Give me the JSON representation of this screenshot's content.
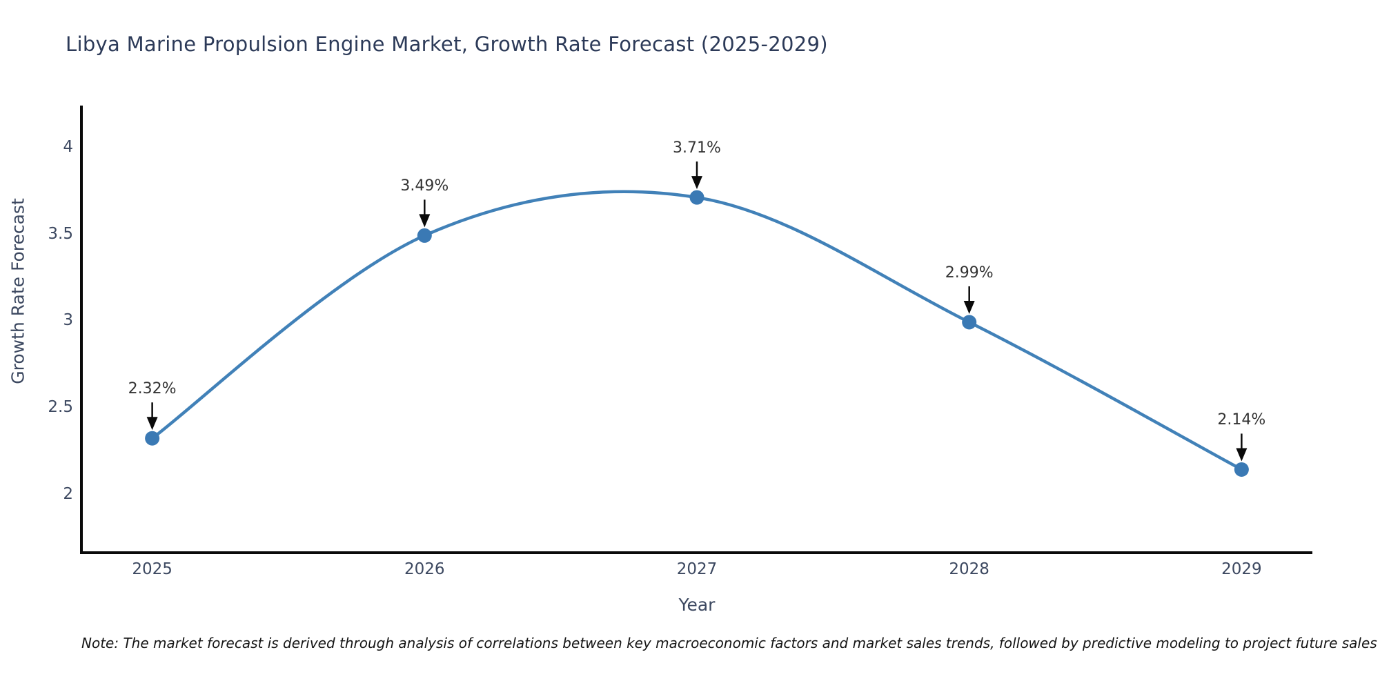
{
  "title": "Libya Marine Propulsion Engine Market, Growth Rate Forecast (2025-2029)",
  "note": "Note: The market forecast is derived through analysis of correlations between key macroeconomic factors and market sales trends, followed by predictive modeling to project future sales",
  "chart_data": {
    "type": "line",
    "title": "Libya Marine Propulsion Engine Market, Growth Rate Forecast (2025-2029)",
    "x": [
      2025,
      2026,
      2027,
      2028,
      2029
    ],
    "series": [
      {
        "name": "Growth Rate Forecast",
        "values": [
          2.32,
          3.49,
          3.71,
          2.99,
          2.14
        ]
      }
    ],
    "point_labels": [
      "2.32%",
      "3.49%",
      "3.71%",
      "2.99%",
      "2.14%"
    ],
    "xlabel": "Year",
    "ylabel": "Growth Rate Forecast",
    "x_tick_labels": [
      "2025",
      "2026",
      "2027",
      "2028",
      "2029"
    ],
    "y_tick_labels": [
      "2",
      "2.5",
      "3",
      "3.5",
      "4"
    ],
    "y_tick_values": [
      2,
      2.5,
      3,
      3.5,
      4
    ],
    "xlim": [
      2024.74,
      2029.26
    ],
    "ylim": [
      1.66,
      4.24
    ],
    "grid": false,
    "legend": "none",
    "line_shape": "smooth",
    "marker": "circle",
    "annotation_arrows": "down-black",
    "colors": {
      "line": "#4181b8",
      "marker": "#3a79b4",
      "axis": "#0a0a0a",
      "title_text": "#2c3a58",
      "tick_text": "#3c4860",
      "annotation_text": "#333333",
      "note_text": "#151515",
      "background": "#ffffff"
    }
  }
}
